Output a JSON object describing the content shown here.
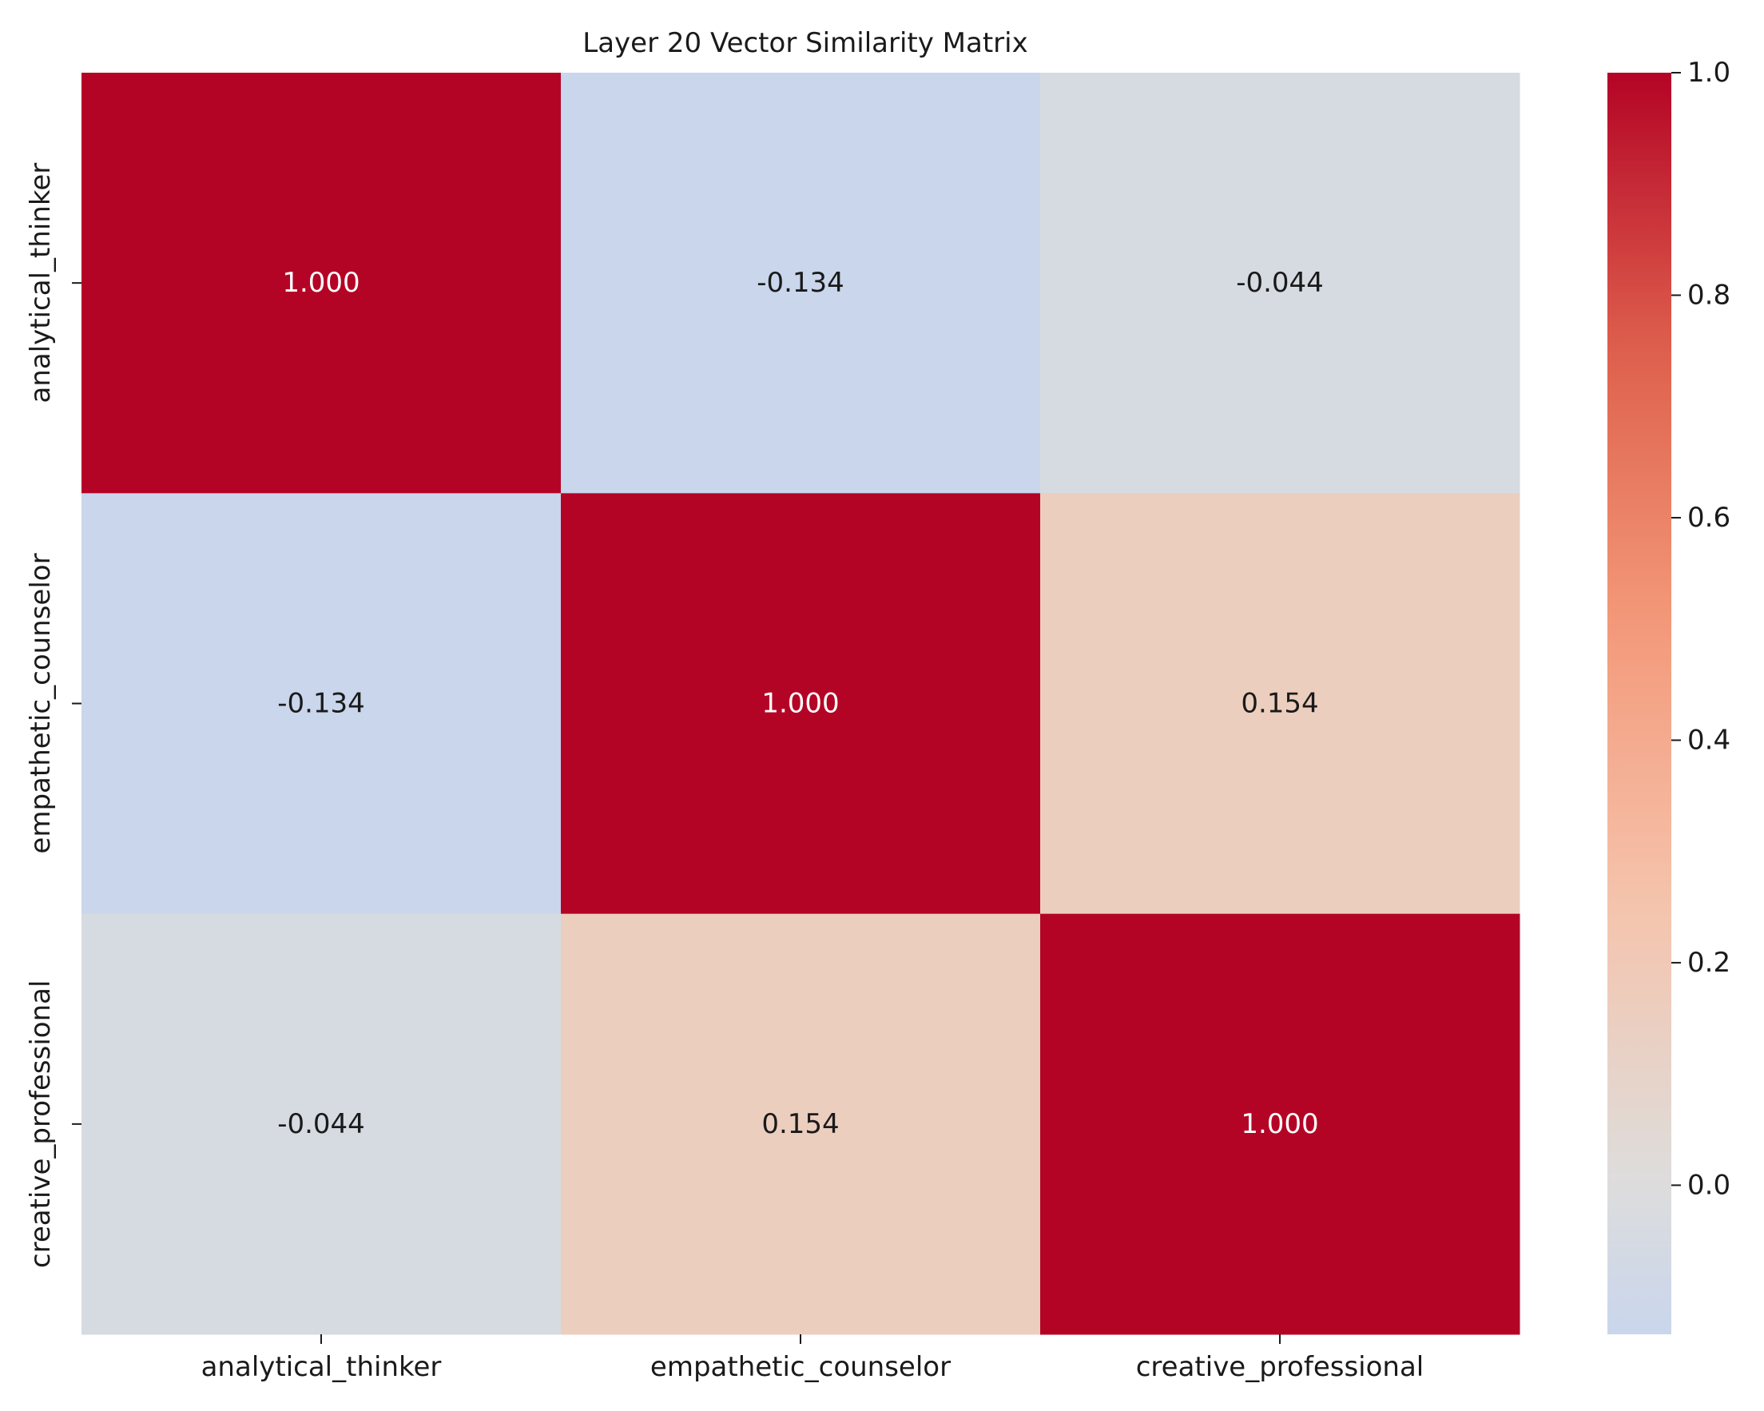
{
  "chart_data": {
    "type": "heatmap",
    "title": "Layer 20 Vector Similarity Matrix",
    "xlabel": "",
    "ylabel": "",
    "x_categories": [
      "analytical_thinker",
      "empathetic_counselor",
      "creative_professional"
    ],
    "y_categories": [
      "analytical_thinker",
      "empathetic_counselor",
      "creative_professional"
    ],
    "values": [
      [
        1.0,
        -0.134,
        -0.044
      ],
      [
        -0.134,
        1.0,
        0.154
      ],
      [
        -0.044,
        0.154,
        1.0
      ]
    ],
    "value_labels": [
      [
        "1.000",
        "-0.134",
        "-0.044"
      ],
      [
        "-0.134",
        "1.000",
        "0.154"
      ],
      [
        "-0.044",
        "0.154",
        "1.000"
      ]
    ],
    "colormap": "coolwarm",
    "center": 0,
    "vmin": -0.134,
    "vmax": 1.0,
    "colorbar_ticks": [
      0.0,
      0.2,
      0.4,
      0.6,
      0.8,
      1.0
    ],
    "colorbar_tick_labels": [
      "0.0",
      "0.2",
      "0.4",
      "0.6",
      "0.8",
      "1.0"
    ],
    "grid": false,
    "legend": "colorbar-right"
  }
}
